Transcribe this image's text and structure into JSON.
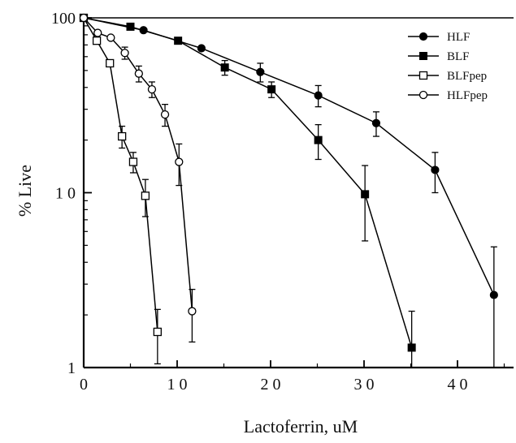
{
  "chart_data": {
    "type": "line",
    "title": "",
    "xlabel": "Lactoferrin,  uM",
    "ylabel": "% Live",
    "y_scale": "log",
    "xlim": [
      0,
      46
    ],
    "ylim": [
      1,
      100
    ],
    "grid": false,
    "legend_position": "top-right",
    "x_ticks": [
      {
        "value": 0,
        "label": "0"
      },
      {
        "value": 10,
        "label": "1 0"
      },
      {
        "value": 20,
        "label": "2 0"
      },
      {
        "value": 30,
        "label": "3 0"
      },
      {
        "value": 40,
        "label": "4 0"
      }
    ],
    "y_ticks": [
      {
        "value": 1,
        "label": "1"
      },
      {
        "value": 10,
        "label": "1 0"
      },
      {
        "value": 100,
        "label": "100"
      }
    ],
    "series": [
      {
        "name": "HLF",
        "marker": "filled-circle",
        "points": [
          {
            "x": 0,
            "y": 100
          },
          {
            "x": 6.4,
            "y": 85
          },
          {
            "x": 12.6,
            "y": 67
          },
          {
            "x": 18.9,
            "y": 49,
            "err": 6
          },
          {
            "x": 25.1,
            "y": 36,
            "err": 5
          },
          {
            "x": 31.3,
            "y": 25,
            "err": 4
          },
          {
            "x": 37.6,
            "y": 13.5,
            "err": 3.5
          },
          {
            "x": 43.9,
            "y": 2.6,
            "err": 2.3
          }
        ]
      },
      {
        "name": "BLF",
        "marker": "filled-square",
        "points": [
          {
            "x": 0,
            "y": 100
          },
          {
            "x": 5,
            "y": 89
          },
          {
            "x": 10.1,
            "y": 74
          },
          {
            "x": 15.1,
            "y": 52,
            "err": 5
          },
          {
            "x": 20.1,
            "y": 39,
            "err": 4
          },
          {
            "x": 25.1,
            "y": 20,
            "err": 4.5
          },
          {
            "x": 30.1,
            "y": 9.8,
            "err": 4.5
          },
          {
            "x": 35.1,
            "y": 1.3,
            "err": 0.8
          }
        ]
      },
      {
        "name": "BLFpep",
        "marker": "open-square",
        "points": [
          {
            "x": 0,
            "y": 100
          },
          {
            "x": 1.4,
            "y": 74
          },
          {
            "x": 2.8,
            "y": 55
          },
          {
            "x": 4.1,
            "y": 21,
            "err": 3
          },
          {
            "x": 5.3,
            "y": 15,
            "err": 2
          },
          {
            "x": 6.6,
            "y": 9.6,
            "err": 2.3
          },
          {
            "x": 7.9,
            "y": 1.6,
            "err": 0.55
          }
        ]
      },
      {
        "name": "HLFpep",
        "marker": "open-circle",
        "points": [
          {
            "x": 0,
            "y": 100
          },
          {
            "x": 1.5,
            "y": 82
          },
          {
            "x": 2.9,
            "y": 77
          },
          {
            "x": 4.4,
            "y": 63,
            "err": 5
          },
          {
            "x": 5.9,
            "y": 48,
            "err": 5
          },
          {
            "x": 7.3,
            "y": 39,
            "err": 4
          },
          {
            "x": 8.7,
            "y": 28,
            "err": 4
          },
          {
            "x": 10.2,
            "y": 15,
            "err": 4
          },
          {
            "x": 11.6,
            "y": 2.1,
            "err": 0.7
          }
        ]
      }
    ]
  }
}
